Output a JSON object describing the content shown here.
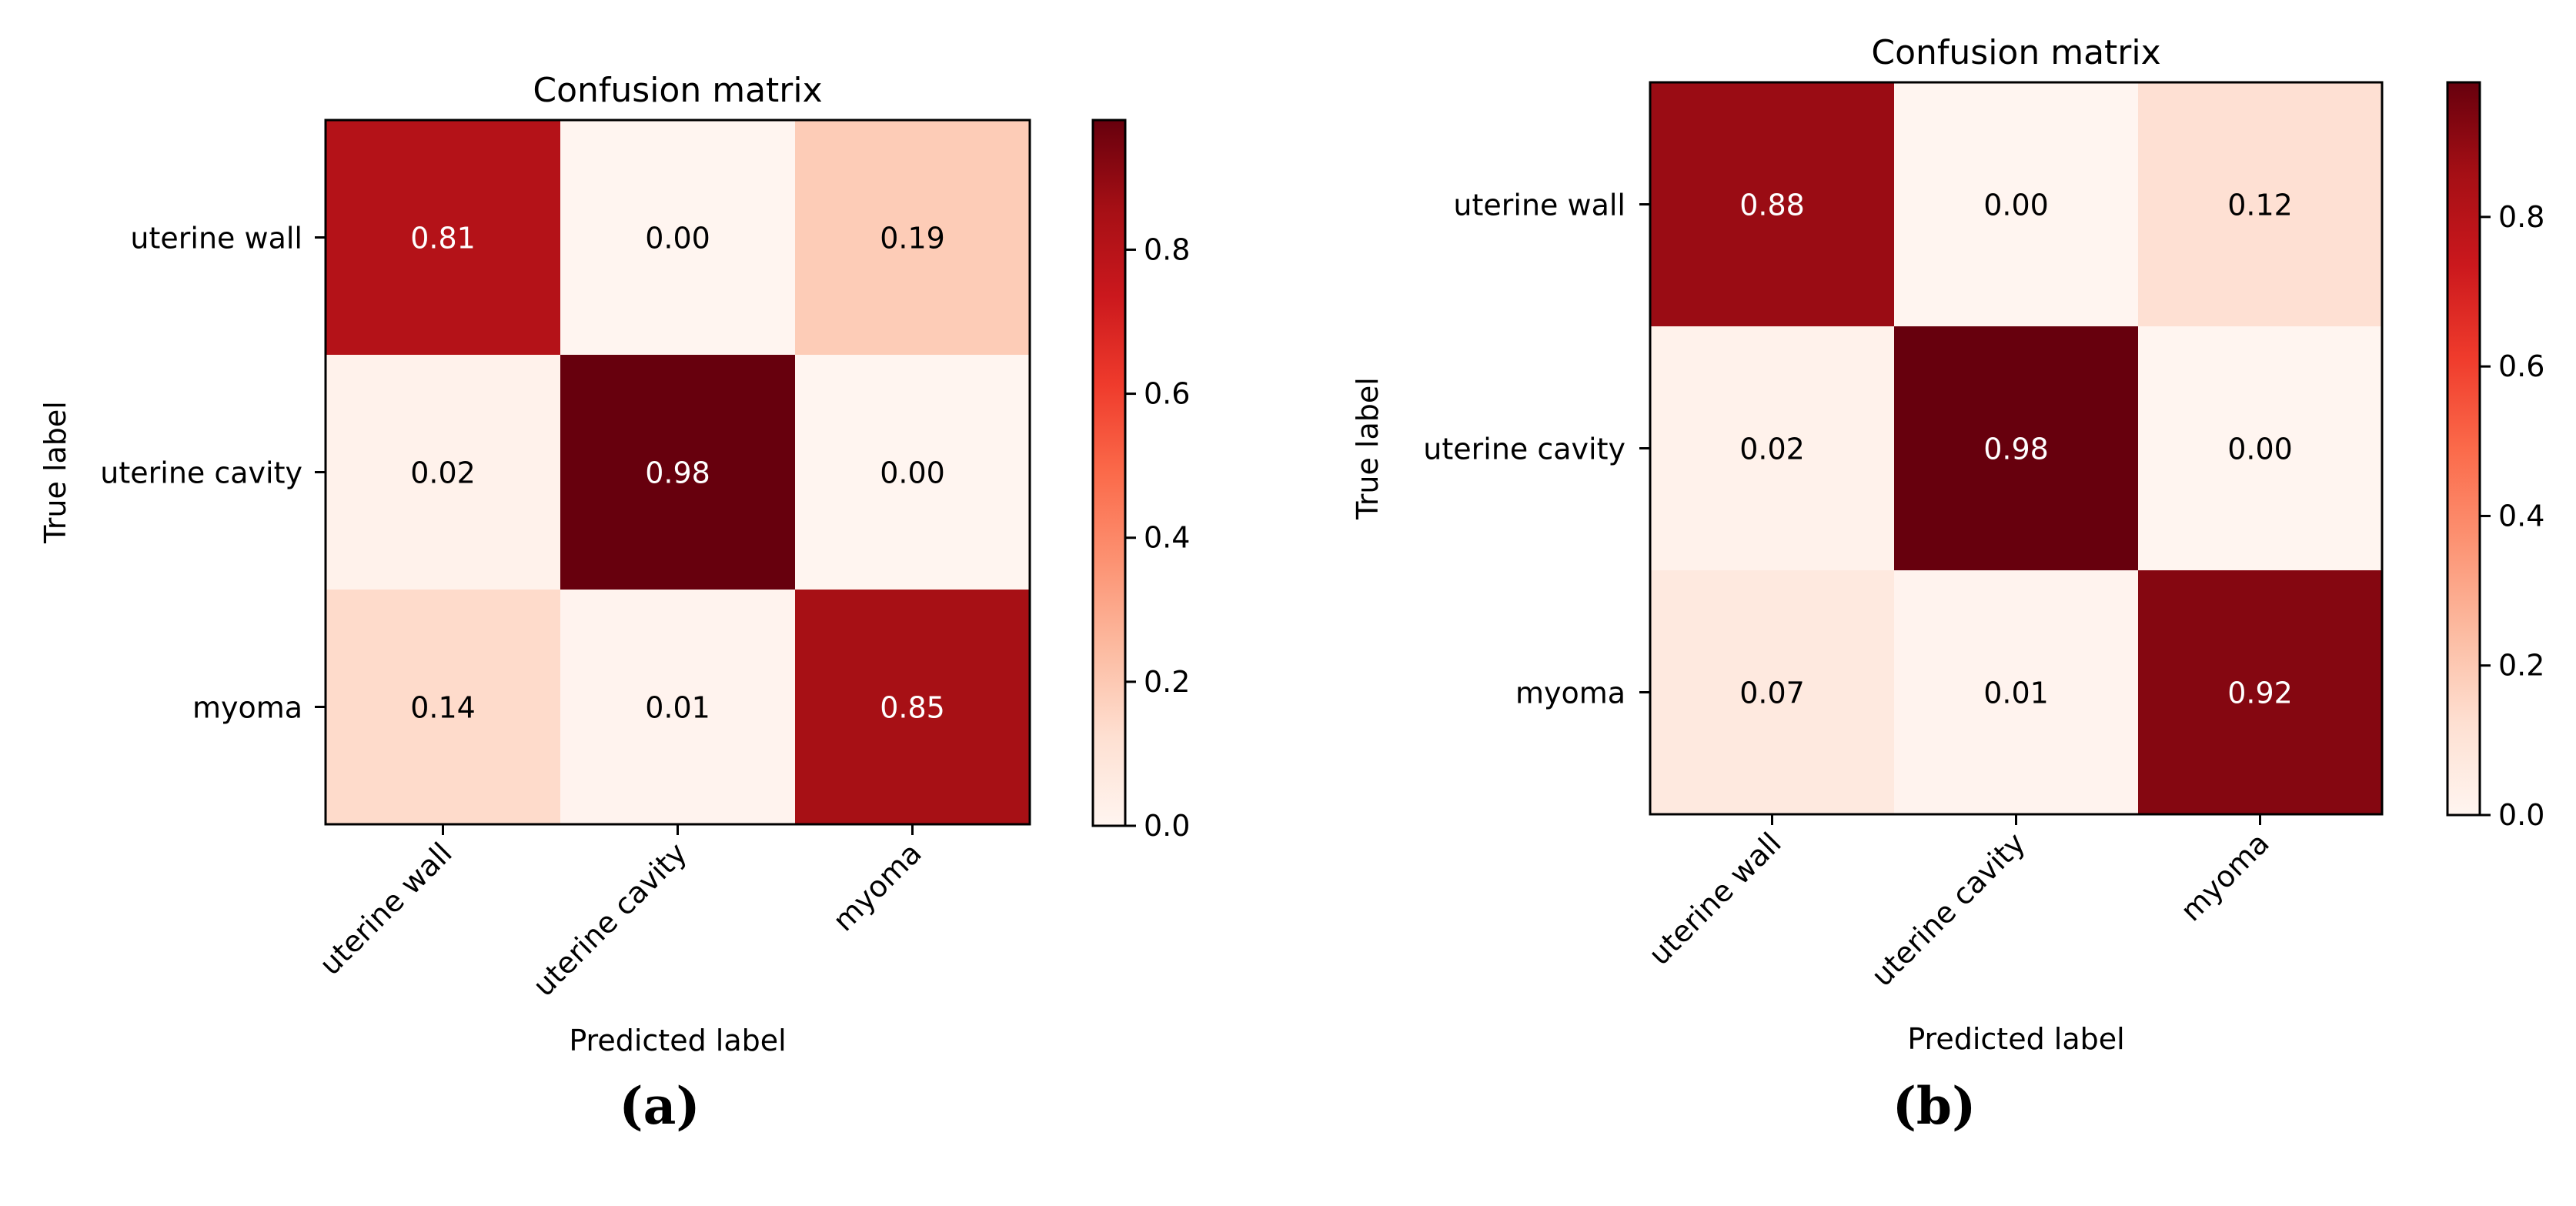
{
  "chart_data": [
    {
      "type": "heatmap",
      "panel_label": "(a)",
      "title": "Confusion matrix",
      "xlabel": "Predicted label",
      "ylabel": "True label",
      "row_labels": [
        "uterine wall",
        "uterine cavity",
        "myoma"
      ],
      "col_labels": [
        "uterine wall",
        "uterine cavity",
        "myoma"
      ],
      "values": [
        [
          0.81,
          0.0,
          0.19
        ],
        [
          0.02,
          0.98,
          0.0
        ],
        [
          0.14,
          0.01,
          0.85
        ]
      ],
      "colorbar": {
        "vmin": 0.0,
        "vmax": 0.98,
        "ticks": [
          0.0,
          0.2,
          0.4,
          0.6,
          0.8
        ],
        "tick_labels": [
          "0.0",
          "0.2",
          "0.4",
          "0.6",
          "0.8"
        ],
        "colormap": "Reds"
      }
    },
    {
      "type": "heatmap",
      "panel_label": "(b)",
      "title": "Confusion matrix",
      "xlabel": "Predicted label",
      "ylabel": "True label",
      "row_labels": [
        "uterine wall",
        "uterine cavity",
        "myoma"
      ],
      "col_labels": [
        "uterine wall",
        "uterine cavity",
        "myoma"
      ],
      "values": [
        [
          0.88,
          0.0,
          0.12
        ],
        [
          0.02,
          0.98,
          0.0
        ],
        [
          0.07,
          0.01,
          0.92
        ]
      ],
      "colorbar": {
        "vmin": 0.0,
        "vmax": 0.98,
        "ticks": [
          0.0,
          0.2,
          0.4,
          0.6,
          0.8
        ],
        "tick_labels": [
          "0.0",
          "0.2",
          "0.4",
          "0.6",
          "0.8"
        ],
        "colormap": "Reds"
      }
    }
  ]
}
